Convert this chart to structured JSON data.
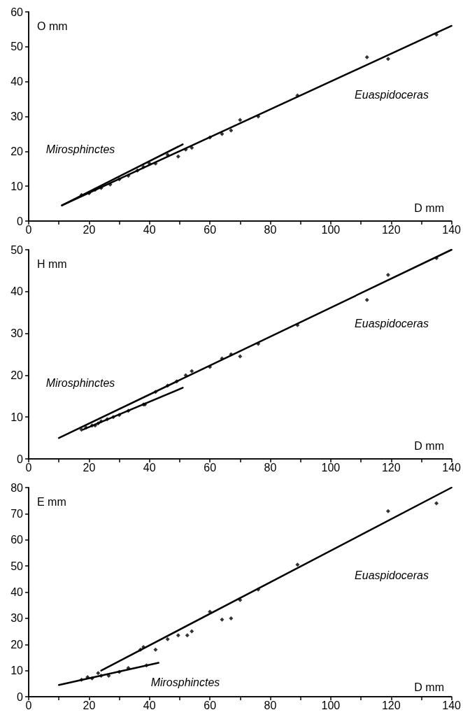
{
  "chart_data": [
    {
      "type": "scatter",
      "xlabel": "D mm",
      "ylabel": "O mm",
      "grid": false,
      "xlim": [
        0,
        140
      ],
      "ylim": [
        0,
        60
      ],
      "xticks": [
        0,
        {
          "value": 10,
          "label": null
        },
        20,
        {
          "value": 30,
          "label": null
        },
        40,
        {
          "value": 50,
          "label": null
        },
        60,
        {
          "value": 70,
          "label": null
        },
        80,
        {
          "value": 90,
          "label": null
        },
        100,
        {
          "value": 110,
          "label": null
        },
        120,
        {
          "value": 130,
          "label": null
        },
        140
      ],
      "yticks": [
        0,
        10,
        20,
        30,
        40,
        50,
        60
      ],
      "annotations": [
        "Mirosphinctes",
        "Euaspidoceras"
      ],
      "series": [
        {
          "marker": "diamond",
          "color": "#000000",
          "x": [
            17.5,
            20,
            22,
            24,
            27,
            30,
            33,
            36,
            38,
            40,
            42,
            46,
            49.5,
            52,
            54,
            60,
            64,
            67,
            70,
            76,
            89,
            112,
            119,
            135
          ],
          "values": [
            7.5,
            8,
            9,
            9.5,
            10.5,
            12,
            13,
            14.5,
            15.5,
            16.5,
            16.5,
            19,
            18.5,
            20.5,
            21,
            24,
            25,
            26,
            29,
            30,
            36,
            47,
            46.5,
            53.5
          ]
        },
        {
          "type": "line",
          "color": "#000000",
          "line_style": "solid",
          "x": [
            11,
            140
          ],
          "values": [
            4.5,
            56
          ]
        },
        {
          "type": "line",
          "color": "#000000",
          "line_style": "solid",
          "x": [
            11,
            51
          ],
          "values": [
            4.5,
            22
          ]
        }
      ]
    },
    {
      "type": "scatter",
      "xlabel": "D mm",
      "ylabel": "H mm",
      "grid": false,
      "xlim": [
        0,
        140
      ],
      "ylim": [
        0,
        50
      ],
      "xticks": [
        0,
        {
          "value": 10,
          "label": null
        },
        20,
        {
          "value": 30,
          "label": null
        },
        40,
        {
          "value": 50,
          "label": null
        },
        60,
        {
          "value": 70,
          "label": null
        },
        80,
        {
          "value": 90,
          "label": null
        },
        100,
        {
          "value": 110,
          "label": null
        },
        120,
        {
          "value": 130,
          "label": null
        },
        140
      ],
      "yticks": [
        0,
        10,
        20,
        30,
        40,
        50
      ],
      "annotations": [
        "Mirosphinctes",
        "Euaspidoceras"
      ],
      "series": [
        {
          "marker": "diamond",
          "color": "#000000",
          "x": [
            17.5,
            19,
            21,
            22,
            23,
            24,
            26,
            28,
            30,
            33,
            38,
            38.5,
            42,
            46,
            49,
            52,
            54,
            60,
            64,
            67,
            70,
            76,
            89,
            112,
            119,
            135
          ],
          "values": [
            7,
            7.5,
            8,
            8,
            8.5,
            9,
            9.5,
            10,
            10.5,
            11.5,
            13,
            13,
            16,
            17.5,
            18.5,
            20,
            21,
            22,
            24,
            25,
            24.5,
            27.5,
            32,
            38,
            44,
            48
          ]
        },
        {
          "type": "line",
          "color": "#000000",
          "line_style": "solid",
          "x": [
            10,
            140
          ],
          "values": [
            5,
            50
          ]
        },
        {
          "type": "line",
          "color": "#000000",
          "line_style": "solid",
          "x": [
            18,
            51
          ],
          "values": [
            7,
            17
          ]
        }
      ]
    },
    {
      "type": "scatter",
      "xlabel": "D mm",
      "ylabel": "E mm",
      "grid": false,
      "xlim": [
        0,
        140
      ],
      "ylim": [
        0,
        80
      ],
      "xticks": [
        0,
        {
          "value": 10,
          "label": null
        },
        20,
        {
          "value": 30,
          "label": null
        },
        40,
        {
          "value": 50,
          "label": null
        },
        60,
        {
          "value": 70,
          "label": null
        },
        80,
        {
          "value": 90,
          "label": null
        },
        100,
        {
          "value": 110,
          "label": null
        },
        120,
        {
          "value": 130,
          "label": null
        },
        140
      ],
      "yticks": [
        0,
        10,
        20,
        30,
        40,
        50,
        60,
        70,
        80
      ],
      "annotations": [
        "Mirosphinctes",
        "Euaspidoceras"
      ],
      "series": [
        {
          "marker": "diamond",
          "color": "#000000",
          "x": [
            17.5,
            19.5,
            21,
            23,
            24,
            26.5,
            30,
            33,
            39,
            37,
            38,
            42,
            46,
            49.5,
            52.5,
            54,
            60,
            64,
            67,
            70,
            76,
            89,
            119,
            135
          ],
          "values": [
            6.5,
            7.5,
            7,
            9,
            8,
            8,
            9.5,
            11,
            12,
            18,
            19,
            18,
            22,
            23.5,
            23.5,
            25,
            32.5,
            29.5,
            30,
            37,
            41,
            50.5,
            71,
            74
          ]
        },
        {
          "type": "line",
          "color": "#000000",
          "line_style": "solid",
          "x": [
            24,
            140
          ],
          "values": [
            10,
            80
          ]
        },
        {
          "type": "line",
          "color": "#000000",
          "line_style": "solid",
          "x": [
            10,
            43
          ],
          "values": [
            4.5,
            13
          ]
        }
      ]
    }
  ]
}
